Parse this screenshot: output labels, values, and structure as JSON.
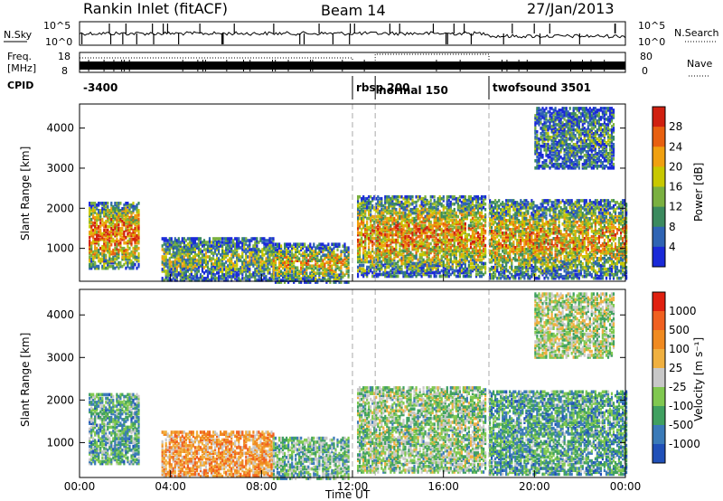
{
  "header": {
    "station": "Rankin Inlet (fitACF)",
    "beam": "Beam 14",
    "date": "27/Jan/2013"
  },
  "noise_panel": {
    "left_label": "N.Sky",
    "right_label": "N.Search",
    "left_ticks": [
      "10^5",
      "10^0"
    ],
    "right_ticks": [
      "10^5",
      "10^0"
    ]
  },
  "freq_panel": {
    "left_label_1": "Freq.",
    "left_label_2": "[MHz]",
    "right_label": "Nave",
    "left_ticks": [
      "18",
      "8"
    ],
    "right_ticks": [
      "80",
      "0"
    ]
  },
  "cpid": {
    "label": "CPID",
    "segments": [
      {
        "text": "-3400",
        "start_hour": 0.0
      },
      {
        "text": "rbsp 200",
        "start_hour": 12.0
      },
      {
        "text": "normal 150",
        "start_hour": 13.0
      },
      {
        "text": "twofsound 3501",
        "start_hour": 18.0
      }
    ]
  },
  "chart_data": [
    {
      "type": "heatmap",
      "title": "",
      "ylabel": "Slant Range [km]",
      "xlabel": "",
      "ylim": [
        180,
        4600
      ],
      "xlim": [
        0,
        24
      ],
      "yticks": [
        "1000",
        "2000",
        "3000",
        "4000"
      ],
      "colorbar": {
        "label": "Power [dB]",
        "ticks": [
          "4",
          "8",
          "12",
          "16",
          "20",
          "24",
          "28"
        ],
        "range": [
          0,
          32
        ],
        "colors": [
          "#1a2ad8",
          "#2f64b4",
          "#3b8a5e",
          "#7ab040",
          "#c8c800",
          "#f0a010",
          "#e86010",
          "#d02010"
        ]
      },
      "mode_boundaries_hours": [
        12.0,
        13.0,
        18.0
      ],
      "echo_regions": [
        {
          "t0": 0.4,
          "t1": 2.6,
          "r0": 500,
          "r1": 2150,
          "level": 0.8
        },
        {
          "t0": 3.6,
          "t1": 8.5,
          "r0": 200,
          "r1": 1250,
          "level": 0.45
        },
        {
          "t0": 8.5,
          "t1": 11.8,
          "r0": 150,
          "r1": 1100,
          "level": 0.6
        },
        {
          "t0": 12.2,
          "t1": 17.8,
          "r0": 300,
          "r1": 2300,
          "level": 0.7
        },
        {
          "t0": 18.0,
          "t1": 24.0,
          "r0": 250,
          "r1": 2200,
          "level": 0.65
        },
        {
          "t0": 20.0,
          "t1": 23.5,
          "r0": 3000,
          "r1": 4500,
          "level": 0.3
        }
      ]
    },
    {
      "type": "heatmap",
      "title": "",
      "ylabel": "Slant Range [km]",
      "xlabel": "Time UT",
      "ylim": [
        180,
        4600
      ],
      "xlim": [
        0,
        24
      ],
      "yticks": [
        "1000",
        "2000",
        "3000",
        "4000"
      ],
      "xticks": [
        "00:00",
        "04:00",
        "08:00",
        "12:00",
        "16:00",
        "20:00",
        "00:00"
      ],
      "colorbar": {
        "label": "Velocity [m s⁻¹]",
        "ticks": [
          "1000",
          "500",
          "100",
          "25",
          "-25",
          "-100",
          "-500",
          "-1000"
        ],
        "range": [
          -1200,
          1200
        ],
        "colors": [
          "#2050b8",
          "#3a7ab8",
          "#40a060",
          "#80c850",
          "#c8c8c8",
          "#f0b040",
          "#f08a20",
          "#f06020",
          "#e02010"
        ]
      },
      "mode_boundaries_hours": [
        12.0,
        13.0,
        18.0
      ],
      "echo_regions": [
        {
          "t0": 0.4,
          "t1": 2.6,
          "r0": 500,
          "r1": 2150,
          "level": -0.4
        },
        {
          "t0": 3.6,
          "t1": 8.5,
          "r0": 200,
          "r1": 1250,
          "level": 0.35
        },
        {
          "t0": 8.5,
          "t1": 11.8,
          "r0": 150,
          "r1": 1100,
          "level": -0.3
        },
        {
          "t0": 12.2,
          "t1": 17.8,
          "r0": 300,
          "r1": 2300,
          "level": -0.2
        },
        {
          "t0": 18.0,
          "t1": 24.0,
          "r0": 250,
          "r1": 2200,
          "level": -0.45
        },
        {
          "t0": 20.0,
          "t1": 23.5,
          "r0": 3000,
          "r1": 4500,
          "level": -0.1
        }
      ]
    }
  ]
}
